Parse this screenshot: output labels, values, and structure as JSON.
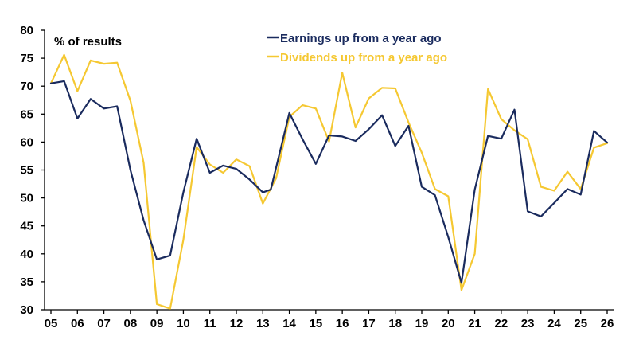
{
  "chart_data": {
    "type": "line",
    "title": "",
    "unit_label": "% of results",
    "xlabel": "",
    "ylabel": "",
    "ylim": [
      30,
      80
    ],
    "yticks": [
      30,
      35,
      40,
      45,
      50,
      55,
      60,
      65,
      70,
      75,
      80
    ],
    "xlim": [
      5,
      26
    ],
    "xticks": [
      "05",
      "06",
      "07",
      "08",
      "09",
      "10",
      "11",
      "12",
      "13",
      "14",
      "15",
      "16",
      "17",
      "18",
      "19",
      "20",
      "21",
      "22",
      "23",
      "24",
      "25",
      "26"
    ],
    "grid": false,
    "legend_position": "top",
    "series": [
      {
        "name": "Earnings up from a year ago",
        "color": "#1a2b5e",
        "points": [
          [
            5.0,
            70.5
          ],
          [
            5.5,
            70.9
          ],
          [
            6.0,
            64.2
          ],
          [
            6.5,
            67.7
          ],
          [
            7.0,
            66.0
          ],
          [
            7.5,
            66.4
          ],
          [
            8.0,
            55.0
          ],
          [
            8.5,
            46.0
          ],
          [
            9.0,
            39.0
          ],
          [
            9.5,
            39.7
          ],
          [
            10.0,
            51.0
          ],
          [
            10.5,
            60.6
          ],
          [
            11.0,
            54.5
          ],
          [
            11.5,
            55.8
          ],
          [
            12.0,
            55.2
          ],
          [
            12.5,
            53.3
          ],
          [
            13.0,
            51.0
          ],
          [
            13.3,
            51.5
          ],
          [
            14.0,
            65.2
          ],
          [
            14.5,
            60.5
          ],
          [
            15.0,
            56.1
          ],
          [
            15.5,
            61.2
          ],
          [
            16.0,
            61.0
          ],
          [
            16.5,
            60.2
          ],
          [
            17.0,
            62.3
          ],
          [
            17.5,
            64.8
          ],
          [
            18.0,
            59.3
          ],
          [
            18.5,
            62.9
          ],
          [
            19.0,
            52.0
          ],
          [
            19.5,
            50.5
          ],
          [
            20.0,
            43.0
          ],
          [
            20.5,
            34.8
          ],
          [
            21.0,
            51.5
          ],
          [
            21.5,
            61.1
          ],
          [
            22.0,
            60.6
          ],
          [
            22.5,
            65.8
          ],
          [
            23.0,
            47.6
          ],
          [
            23.5,
            46.7
          ],
          [
            24.0,
            49.1
          ],
          [
            24.5,
            51.6
          ],
          [
            25.0,
            50.6
          ],
          [
            25.5,
            62.0
          ],
          [
            26.0,
            59.9
          ]
        ]
      },
      {
        "name": "Dividends up from a year ago",
        "color": "#f5c832",
        "points": [
          [
            5.0,
            70.5
          ],
          [
            5.5,
            75.6
          ],
          [
            6.0,
            69.1
          ],
          [
            6.5,
            74.6
          ],
          [
            7.0,
            74.0
          ],
          [
            7.5,
            74.2
          ],
          [
            8.0,
            67.4
          ],
          [
            8.5,
            56.3
          ],
          [
            9.0,
            31.0
          ],
          [
            9.5,
            30.2
          ],
          [
            10.0,
            42.5
          ],
          [
            10.5,
            59.1
          ],
          [
            11.0,
            56.0
          ],
          [
            11.5,
            54.5
          ],
          [
            12.0,
            56.9
          ],
          [
            12.5,
            55.7
          ],
          [
            13.0,
            49.0
          ],
          [
            13.5,
            53.5
          ],
          [
            14.0,
            64.5
          ],
          [
            14.5,
            66.6
          ],
          [
            15.0,
            66.0
          ],
          [
            15.5,
            60.1
          ],
          [
            16.0,
            72.4
          ],
          [
            16.5,
            62.6
          ],
          [
            17.0,
            67.8
          ],
          [
            17.5,
            69.7
          ],
          [
            18.0,
            69.6
          ],
          [
            18.5,
            63.5
          ],
          [
            19.0,
            58.1
          ],
          [
            19.5,
            51.6
          ],
          [
            20.0,
            50.3
          ],
          [
            20.5,
            33.5
          ],
          [
            21.0,
            40.0
          ],
          [
            21.5,
            69.5
          ],
          [
            22.0,
            64.1
          ],
          [
            22.5,
            62.1
          ],
          [
            23.0,
            60.5
          ],
          [
            23.5,
            52.0
          ],
          [
            24.0,
            51.3
          ],
          [
            24.5,
            54.7
          ],
          [
            25.0,
            51.6
          ],
          [
            25.5,
            59.0
          ],
          [
            26.0,
            59.8
          ]
        ]
      }
    ]
  },
  "colors": {
    "earnings": "#1a2b5e",
    "dividends": "#f5c832",
    "axis": "#000000"
  }
}
